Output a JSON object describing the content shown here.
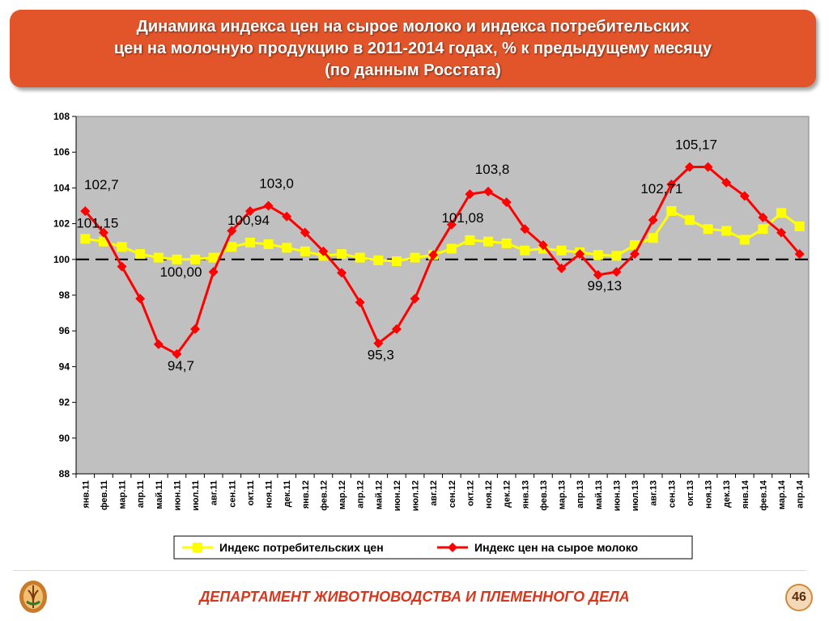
{
  "header": {
    "title_line1": "Динамика индекса цен на сырое молоко и индекса потребительских",
    "title_line2": "цен на молочную продукцию в 2011-2014 годах, % к предыдущему месяцу",
    "title_line3": "(по данным Росстата)"
  },
  "footer": {
    "department": "ДЕПАРТАМЕНТ ЖИВОТНОВОДСТВА И ПЛЕМЕННОГО ДЕЛА",
    "page_number": "46"
  },
  "colors": {
    "title_bg": "#e2552a",
    "plot_bg": "#c0c0c0",
    "cpi_series": "#ffff00",
    "milk_series": "#ff0000",
    "footer_text": "#d9361c"
  },
  "chart_data": {
    "type": "line",
    "categories": [
      "янв.11",
      "фев.11",
      "мар.11",
      "апр.11",
      "май.11",
      "июн.11",
      "июл.11",
      "авг.11",
      "сен.11",
      "окт.11",
      "ноя.11",
      "дек.11",
      "янв.12",
      "фев.12",
      "мар.12",
      "апр.12",
      "май.12",
      "июн.12",
      "июл.12",
      "авг.12",
      "сен.12",
      "окт.12",
      "ноя.12",
      "дек.12",
      "янв.13",
      "фев.13",
      "мар.13",
      "апр.13",
      "май.13",
      "июн.13",
      "июл.13",
      "авг.13",
      "сен.13",
      "окт.13",
      "ноя.13",
      "дек.13",
      "янв.14",
      "фев.14",
      "мар.14",
      "апр.14"
    ],
    "series": [
      {
        "name": "Индекс потребительских цен",
        "color": "#ffff00",
        "marker": "square",
        "values": [
          101.15,
          101.0,
          100.7,
          100.3,
          100.1,
          100.0,
          100.0,
          100.1,
          100.7,
          100.94,
          100.85,
          100.65,
          100.45,
          100.2,
          100.3,
          100.1,
          99.95,
          99.9,
          100.1,
          100.25,
          100.6,
          101.08,
          101.0,
          100.9,
          100.5,
          100.6,
          100.5,
          100.4,
          100.25,
          100.2,
          100.8,
          101.2,
          102.71,
          102.2,
          101.7,
          101.6,
          101.1,
          101.7,
          102.6,
          101.85
        ]
      },
      {
        "name": "Индекс цен на сырое молоко",
        "color": "#ff0000",
        "marker": "diamond",
        "values": [
          102.7,
          101.5,
          99.6,
          97.8,
          95.25,
          94.7,
          96.1,
          99.3,
          101.6,
          102.7,
          103.0,
          102.4,
          101.5,
          100.45,
          99.25,
          97.6,
          95.3,
          96.1,
          97.8,
          100.25,
          101.95,
          103.65,
          103.8,
          103.2,
          101.7,
          100.8,
          99.5,
          100.3,
          99.13,
          99.3,
          100.3,
          102.2,
          104.2,
          105.17,
          105.17,
          104.3,
          103.55,
          102.35,
          101.5,
          100.3
        ]
      }
    ],
    "data_labels": [
      {
        "text": "102,7",
        "category": "янв.11",
        "value": 102.7
      },
      {
        "text": "101,15",
        "category": "янв.11",
        "value": 101.15
      },
      {
        "text": "94,7",
        "category": "июн.11",
        "value": 94.7
      },
      {
        "text": "100,00",
        "category": "июн.11",
        "value": 100.0
      },
      {
        "text": "100,94",
        "category": "окт.11",
        "value": 100.94
      },
      {
        "text": "103,0",
        "category": "ноя.11",
        "value": 103.0
      },
      {
        "text": "95,3",
        "category": "май.12",
        "value": 95.3
      },
      {
        "text": "101,08",
        "category": "окт.12",
        "value": 101.08
      },
      {
        "text": "103,8",
        "category": "ноя.12",
        "value": 103.8
      },
      {
        "text": "99,13",
        "category": "май.13",
        "value": 99.13
      },
      {
        "text": "102,71",
        "category": "сен.13",
        "value": 102.71
      },
      {
        "text": "105,17",
        "category": "окт.13",
        "value": 105.17
      }
    ],
    "reference_line": {
      "value": 100,
      "style": "dashed"
    },
    "ylim": [
      88,
      108
    ],
    "yticks": [
      88,
      90,
      92,
      94,
      96,
      98,
      100,
      102,
      104,
      106,
      108
    ],
    "xlabel": "",
    "ylabel": "",
    "legend_position": "bottom",
    "grid": false
  }
}
